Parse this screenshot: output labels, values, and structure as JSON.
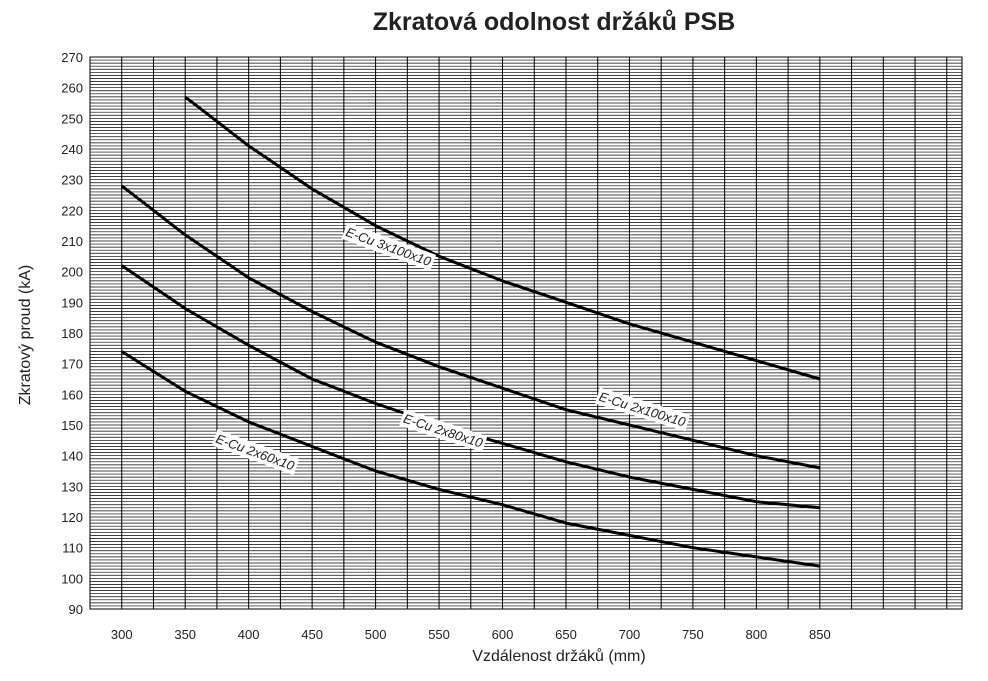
{
  "chart_data": {
    "type": "line",
    "title": "Zkratová odolnost držáků PSB",
    "xlabel": "Vzdálenost držáků (mm)",
    "ylabel": "Zkratový proud (kA)",
    "xlim": [
      275,
      962
    ],
    "ylim": [
      90,
      270
    ],
    "xticks": [
      300,
      350,
      400,
      450,
      500,
      550,
      600,
      650,
      700,
      750,
      800,
      850
    ],
    "yticks": [
      90,
      100,
      110,
      120,
      130,
      140,
      150,
      160,
      170,
      180,
      190,
      200,
      210,
      220,
      230,
      240,
      250,
      260,
      270
    ],
    "grid": true,
    "line_color": "#000000",
    "series": [
      {
        "name": "E-Cu 3x100x10",
        "points": [
          [
            350,
            257
          ],
          [
            400,
            241
          ],
          [
            450,
            227
          ],
          [
            500,
            215
          ],
          [
            550,
            205
          ],
          [
            600,
            197
          ],
          [
            650,
            190
          ],
          [
            700,
            183
          ],
          [
            750,
            177
          ],
          [
            800,
            171
          ],
          [
            850,
            165
          ]
        ]
      },
      {
        "name": "E-Cu 2x100x10",
        "points": [
          [
            300,
            228
          ],
          [
            350,
            212
          ],
          [
            400,
            198
          ],
          [
            450,
            187
          ],
          [
            500,
            177
          ],
          [
            550,
            169
          ],
          [
            600,
            162
          ],
          [
            650,
            155
          ],
          [
            700,
            150
          ],
          [
            750,
            145
          ],
          [
            800,
            140
          ],
          [
            850,
            136
          ]
        ]
      },
      {
        "name": "E-Cu 2x80x10",
        "points": [
          [
            300,
            202
          ],
          [
            350,
            188
          ],
          [
            400,
            176
          ],
          [
            450,
            165
          ],
          [
            500,
            157
          ],
          [
            550,
            150
          ],
          [
            600,
            144
          ],
          [
            650,
            138
          ],
          [
            700,
            133
          ],
          [
            750,
            129
          ],
          [
            800,
            125
          ],
          [
            850,
            123
          ]
        ]
      },
      {
        "name": "E-Cu 2x60x10",
        "points": [
          [
            300,
            174
          ],
          [
            350,
            161
          ],
          [
            400,
            151
          ],
          [
            450,
            143
          ],
          [
            500,
            135
          ],
          [
            550,
            129
          ],
          [
            600,
            124
          ],
          [
            650,
            118
          ],
          [
            700,
            114
          ],
          [
            750,
            110
          ],
          [
            800,
            107
          ],
          [
            850,
            104
          ]
        ]
      }
    ],
    "annotations": [
      {
        "text": "E-Cu 3x100x10",
        "x": 510,
        "y": 208,
        "angle": 20
      },
      {
        "text": "E-Cu 2x100x10",
        "x": 710,
        "y": 155,
        "angle": 17
      },
      {
        "text": "E-Cu 2x80x10",
        "x": 553,
        "y": 148,
        "angle": 18
      },
      {
        "text": "E-Cu 2x60x10",
        "x": 405,
        "y": 141,
        "angle": 20
      }
    ]
  }
}
